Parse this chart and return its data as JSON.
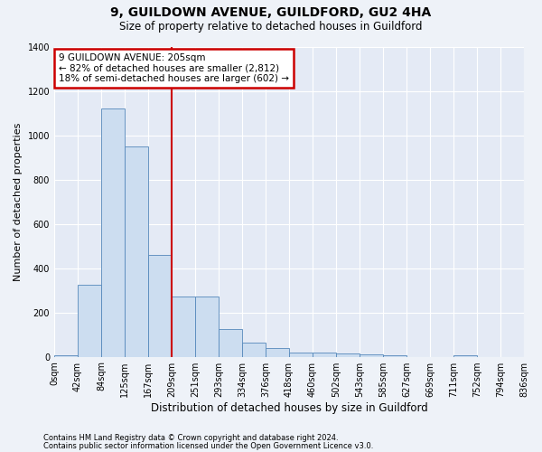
{
  "title1": "9, GUILDOWN AVENUE, GUILDFORD, GU2 4HA",
  "title2": "Size of property relative to detached houses in Guildford",
  "xlabel": "Distribution of detached houses by size in Guildford",
  "ylabel": "Number of detached properties",
  "bar_values": [
    5,
    325,
    1120,
    950,
    460,
    270,
    270,
    125,
    65,
    38,
    20,
    20,
    15,
    10,
    5,
    0,
    0,
    5,
    0,
    0
  ],
  "bin_labels": [
    "0sqm",
    "42sqm",
    "84sqm",
    "125sqm",
    "167sqm",
    "209sqm",
    "251sqm",
    "293sqm",
    "334sqm",
    "376sqm",
    "418sqm",
    "460sqm",
    "502sqm",
    "543sqm",
    "585sqm",
    "627sqm",
    "669sqm",
    "711sqm",
    "752sqm",
    "794sqm",
    "836sqm"
  ],
  "bar_color": "#ccddf0",
  "bar_edge_color": "#5588bb",
  "annotation_line1": "9 GUILDOWN AVENUE: 205sqm",
  "annotation_line2": "← 82% of detached houses are smaller (2,812)",
  "annotation_line3": "18% of semi-detached houses are larger (602) →",
  "annotation_box_color": "#ffffff",
  "annotation_box_edge": "#cc0000",
  "vline_color": "#cc0000",
  "vline_x": 5,
  "ylim": [
    0,
    1400
  ],
  "yticks": [
    0,
    200,
    400,
    600,
    800,
    1000,
    1200,
    1400
  ],
  "footer1": "Contains HM Land Registry data © Crown copyright and database right 2024.",
  "footer2": "Contains public sector information licensed under the Open Government Licence v3.0.",
  "bg_color": "#eef2f8",
  "plot_bg_color": "#e4eaf5",
  "grid_color": "#ffffff",
  "title1_fontsize": 10,
  "title2_fontsize": 8.5,
  "ylabel_fontsize": 8,
  "xlabel_fontsize": 8.5,
  "tick_fontsize": 7,
  "footer_fontsize": 6,
  "annot_fontsize": 7.5
}
